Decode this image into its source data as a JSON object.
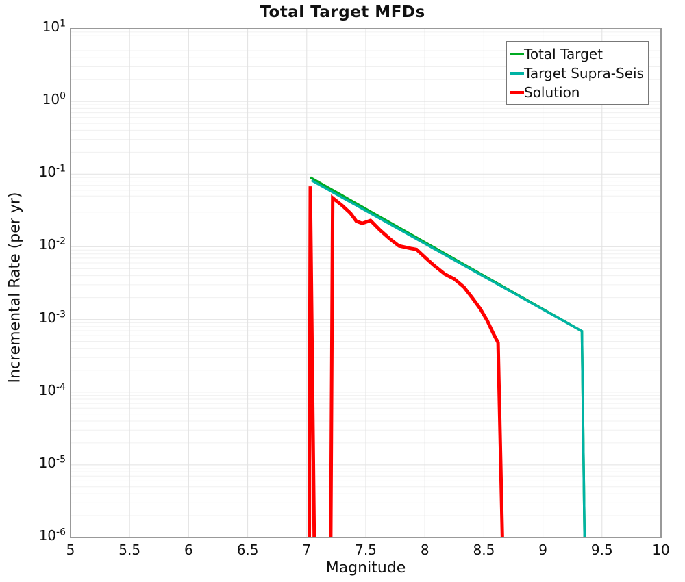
{
  "chart_data": {
    "type": "line",
    "title": "Total Target MFDs",
    "xlabel": "Magnitude",
    "ylabel": "Incremental Rate (per yr)",
    "x_axis": {
      "min": 5,
      "max": 10,
      "tick_step": 0.5,
      "tick_labels": [
        "5",
        "5.5",
        "6",
        "6.5",
        "7",
        "7.5",
        "8",
        "8.5",
        "9",
        "9.5",
        "10"
      ]
    },
    "y_axis": {
      "scale": "log",
      "min_exponent": -6,
      "max_exponent": 1,
      "tick_base": "10",
      "tick_exponents": [
        "1",
        "0",
        "-1",
        "-2",
        "-3",
        "-4",
        "-5",
        "-6"
      ]
    },
    "grid": {
      "vertical_every": 0.5,
      "log_minor": true,
      "major_color": "#e2e2e2",
      "minor_color": "#f0f0f0"
    },
    "axes_color": "#999999",
    "legend": {
      "position": "top-right",
      "border_color": "#777777",
      "labels": [
        "Total Target",
        "Target Supra-Seis",
        "Solution"
      ]
    },
    "series": [
      {
        "name": "Total Target",
        "color": "#00aa22",
        "width": 3.5,
        "points": [
          [
            7.03,
            0.09
          ],
          [
            9.33,
            0.00069
          ],
          [
            9.36,
            1e-07
          ]
        ]
      },
      {
        "name": "Target Supra-Seis",
        "color": "#00b3a4",
        "width": 3.5,
        "points": [
          [
            7.04,
            0.082
          ],
          [
            9.33,
            0.00069
          ],
          [
            9.36,
            1e-07
          ]
        ]
      },
      {
        "name": "Solution",
        "color": "#ff0000",
        "width": 5,
        "points": [
          [
            7.02,
            1e-07
          ],
          [
            7.03,
            0.068
          ],
          [
            7.07,
            1e-07
          ],
          [
            7.2,
            1e-07
          ],
          [
            7.22,
            0.047
          ],
          [
            7.3,
            0.037
          ],
          [
            7.37,
            0.029
          ],
          [
            7.42,
            0.0225
          ],
          [
            7.47,
            0.021
          ],
          [
            7.54,
            0.023
          ],
          [
            7.62,
            0.017
          ],
          [
            7.7,
            0.013
          ],
          [
            7.78,
            0.0103
          ],
          [
            7.88,
            0.0095
          ],
          [
            7.93,
            0.0092
          ],
          [
            8.0,
            0.0072
          ],
          [
            8.08,
            0.0055
          ],
          [
            8.17,
            0.0042
          ],
          [
            8.25,
            0.0036
          ],
          [
            8.33,
            0.0028
          ],
          [
            8.4,
            0.002
          ],
          [
            8.47,
            0.0014
          ],
          [
            8.53,
            0.00095
          ],
          [
            8.58,
            0.00064
          ],
          [
            8.62,
            0.00048
          ],
          [
            8.67,
            1e-07
          ]
        ]
      }
    ]
  }
}
